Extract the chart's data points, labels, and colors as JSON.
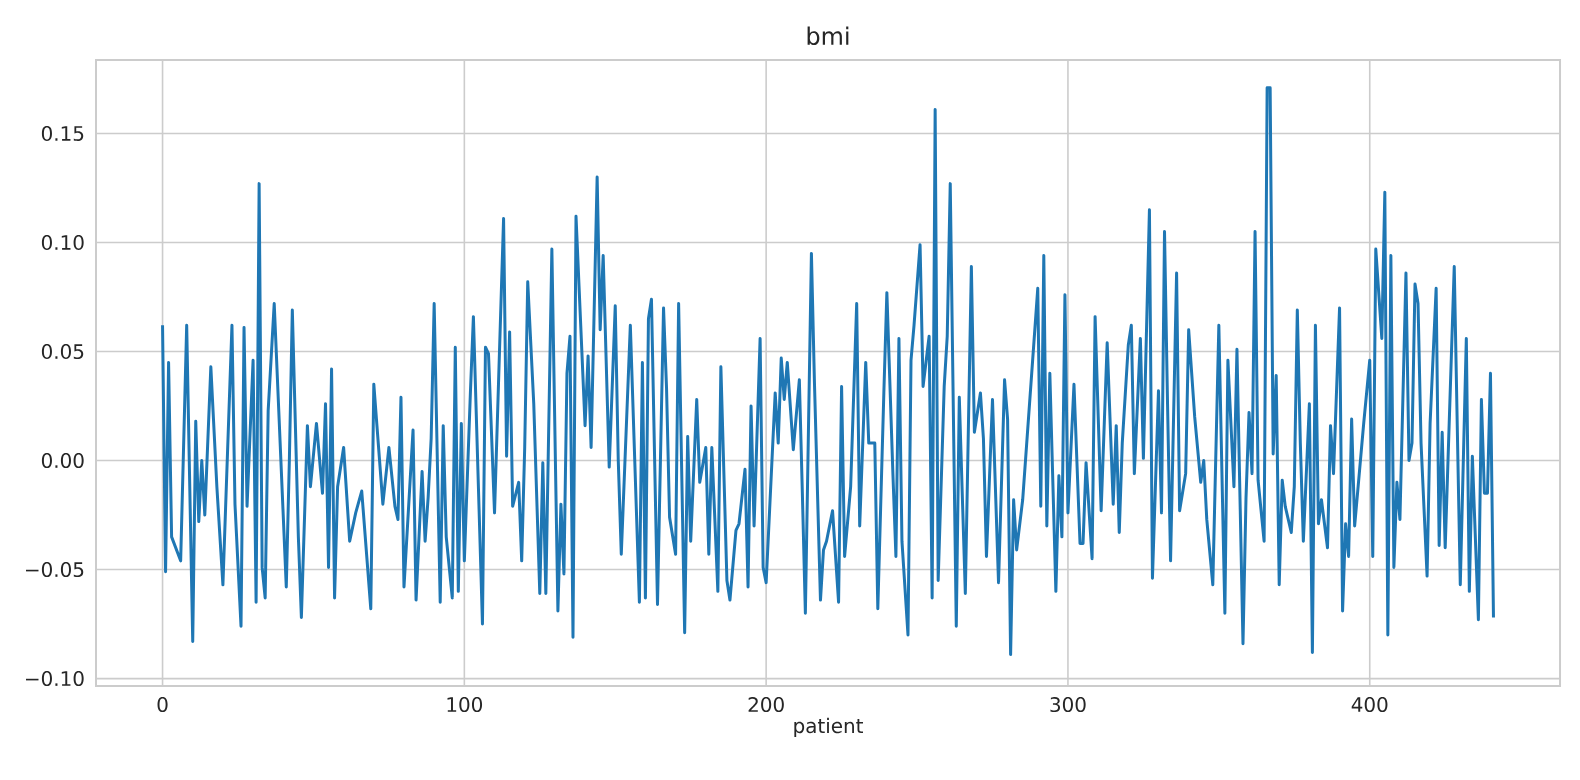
{
  "chart_data": {
    "type": "line",
    "title": "bmi",
    "xlabel": "patient",
    "xlim": [
      -22.05,
      463.05
    ],
    "ylim": [
      -0.1034,
      0.1837
    ],
    "xticks": [
      0,
      100,
      200,
      300,
      400
    ],
    "yticks": [
      {
        "value": -0.1,
        "label": "−0.10"
      },
      {
        "value": -0.05,
        "label": "−0.05"
      },
      {
        "value": 0,
        "label": "0.00"
      },
      {
        "value": 0.05,
        "label": "0.05"
      },
      {
        "value": 0.1,
        "label": "0.10"
      },
      {
        "value": 0.15,
        "label": "0.15"
      }
    ],
    "grid": true,
    "series": [
      {
        "color": "#1f77b4",
        "x": [
          0,
          1,
          2,
          3,
          6,
          8,
          10,
          11,
          12,
          13,
          14,
          16,
          18,
          20,
          23,
          24,
          26,
          27,
          28,
          30,
          31,
          32,
          33,
          34,
          35,
          37,
          41,
          42,
          43,
          45,
          46,
          48,
          49,
          51,
          53,
          54,
          55,
          56,
          57,
          58,
          60,
          62,
          64,
          66,
          69,
          70,
          73,
          75,
          77,
          78,
          79,
          80,
          83,
          84,
          86,
          87,
          88,
          89,
          90,
          92,
          93,
          94,
          96,
          97,
          98,
          99,
          100,
          102,
          103,
          106,
          107,
          108,
          110,
          113,
          114,
          115,
          116,
          118,
          119,
          120,
          121,
          123,
          125,
          126,
          127,
          129,
          131,
          132,
          133,
          134,
          135,
          136,
          137,
          140,
          141,
          142,
          144,
          145,
          146,
          148,
          150,
          151,
          152,
          155,
          158,
          159,
          160,
          161,
          162,
          164,
          166,
          167,
          168,
          170,
          171,
          173,
          174,
          175,
          177,
          178,
          180,
          181,
          182,
          184,
          185,
          187,
          188,
          190,
          191,
          193,
          194,
          195,
          196,
          198,
          199,
          200,
          203,
          204,
          205,
          206,
          207,
          209,
          211,
          212,
          213,
          215,
          216,
          218,
          219,
          220,
          222,
          224,
          225,
          226,
          228,
          230,
          231,
          233,
          234,
          236,
          237,
          239,
          240,
          242,
          243,
          244,
          245,
          247,
          248,
          249,
          251,
          252,
          254,
          255,
          256,
          257,
          259,
          260,
          261,
          263,
          264,
          266,
          268,
          269,
          271,
          272,
          273,
          275,
          277,
          279,
          280,
          281,
          282,
          283,
          285,
          290,
          291,
          292,
          293,
          294,
          296,
          297,
          298,
          299,
          300,
          302,
          304,
          305,
          306,
          308,
          309,
          311,
          313,
          315,
          316,
          317,
          318,
          320,
          321,
          322,
          324,
          325,
          327,
          328,
          330,
          331,
          332,
          333,
          334,
          336,
          337,
          339,
          340,
          342,
          344,
          345,
          346,
          348,
          350,
          352,
          353,
          355,
          356,
          358,
          359,
          360,
          361,
          362,
          363,
          365,
          366,
          367,
          368,
          369,
          370,
          371,
          372,
          374,
          375,
          376,
          377,
          378,
          380,
          381,
          382,
          383,
          384,
          386,
          387,
          388,
          390,
          391,
          392,
          393,
          394,
          395,
          398,
          400,
          401,
          402,
          404,
          405,
          406,
          407,
          408,
          409,
          410,
          412,
          413,
          414,
          415,
          416,
          417,
          419,
          420,
          422,
          423,
          424,
          425,
          426,
          428,
          430,
          432,
          433,
          434,
          436,
          437,
          438,
          439,
          440,
          441
        ],
        "values": [
          0.062,
          -0.051,
          0.045,
          -0.035,
          -0.046,
          0.062,
          -0.083,
          0.018,
          -0.028,
          0.0,
          -0.025,
          0.043,
          -0.012,
          -0.057,
          0.062,
          -0.02,
          -0.076,
          0.061,
          -0.021,
          0.046,
          -0.065,
          0.127,
          -0.049,
          -0.063,
          0.023,
          0.072,
          -0.058,
          -0.001,
          0.069,
          -0.035,
          -0.072,
          0.016,
          -0.012,
          0.017,
          -0.015,
          0.026,
          -0.049,
          0.042,
          -0.063,
          -0.012,
          0.006,
          -0.037,
          -0.024,
          -0.014,
          -0.068,
          0.035,
          -0.02,
          0.006,
          -0.021,
          -0.027,
          0.029,
          -0.058,
          0.014,
          -0.064,
          -0.005,
          -0.037,
          -0.017,
          0.01,
          0.072,
          -0.065,
          0.016,
          -0.035,
          -0.063,
          0.052,
          -0.06,
          0.017,
          -0.046,
          0.031,
          0.066,
          -0.075,
          0.052,
          0.049,
          -0.024,
          0.111,
          0.002,
          0.059,
          -0.021,
          -0.01,
          -0.046,
          0.006,
          0.082,
          0.026,
          -0.061,
          -0.001,
          -0.061,
          0.097,
          -0.069,
          -0.02,
          -0.052,
          0.04,
          0.057,
          -0.081,
          0.112,
          0.016,
          0.048,
          0.006,
          0.13,
          0.06,
          0.094,
          -0.003,
          0.071,
          0.0,
          -0.043,
          0.062,
          -0.065,
          0.045,
          -0.063,
          0.065,
          0.074,
          -0.066,
          0.07,
          0.033,
          -0.026,
          -0.043,
          0.072,
          -0.079,
          0.011,
          -0.037,
          0.028,
          -0.01,
          0.006,
          -0.043,
          0.006,
          -0.06,
          0.043,
          -0.055,
          -0.064,
          -0.032,
          -0.029,
          -0.004,
          -0.058,
          0.025,
          -0.03,
          0.056,
          -0.049,
          -0.056,
          0.031,
          0.008,
          0.047,
          0.028,
          0.045,
          0.005,
          0.037,
          -0.015,
          -0.07,
          0.095,
          0.036,
          -0.064,
          -0.041,
          -0.037,
          -0.023,
          -0.065,
          0.034,
          -0.044,
          -0.012,
          0.072,
          -0.03,
          0.045,
          0.008,
          0.008,
          -0.068,
          0.031,
          0.077,
          -0.006,
          -0.044,
          0.056,
          -0.037,
          -0.08,
          0.046,
          0.062,
          0.099,
          0.034,
          0.057,
          -0.063,
          0.161,
          -0.055,
          0.034,
          0.057,
          0.127,
          -0.076,
          0.029,
          -0.061,
          0.089,
          0.013,
          0.031,
          0.01,
          -0.044,
          0.028,
          -0.056,
          0.037,
          0.019,
          -0.089,
          -0.018,
          -0.041,
          -0.018,
          0.079,
          -0.021,
          0.094,
          -0.03,
          0.04,
          -0.06,
          -0.007,
          -0.035,
          0.076,
          -0.024,
          0.035,
          -0.038,
          -0.038,
          -0.001,
          -0.045,
          0.066,
          -0.023,
          0.054,
          -0.02,
          0.016,
          -0.033,
          0.008,
          0.053,
          0.062,
          -0.006,
          0.056,
          0.001,
          0.115,
          -0.054,
          0.032,
          -0.024,
          0.105,
          0.026,
          -0.046,
          0.086,
          -0.023,
          -0.006,
          0.06,
          0.02,
          -0.01,
          0.0,
          -0.027,
          -0.057,
          0.062,
          -0.07,
          0.046,
          -0.012,
          0.051,
          -0.084,
          -0.017,
          0.022,
          -0.006,
          0.105,
          -0.009,
          -0.037,
          0.171,
          0.171,
          0.003,
          0.039,
          -0.057,
          -0.009,
          -0.021,
          -0.033,
          -0.012,
          0.069,
          0.008,
          -0.037,
          0.026,
          -0.088,
          0.062,
          -0.029,
          -0.018,
          -0.04,
          0.016,
          -0.006,
          0.07,
          -0.069,
          -0.029,
          -0.044,
          0.019,
          -0.03,
          0.017,
          0.046,
          -0.044,
          0.097,
          0.056,
          0.123,
          -0.08,
          0.094,
          -0.049,
          -0.01,
          -0.027,
          0.086,
          0.0,
          0.008,
          0.081,
          0.072,
          0.008,
          -0.053,
          0.017,
          0.079,
          -0.039,
          0.013,
          -0.04,
          0.003,
          0.089,
          -0.057,
          0.056,
          -0.06,
          0.002,
          -0.073,
          0.028,
          -0.015,
          -0.015,
          0.04,
          -0.072
        ]
      }
    ]
  }
}
